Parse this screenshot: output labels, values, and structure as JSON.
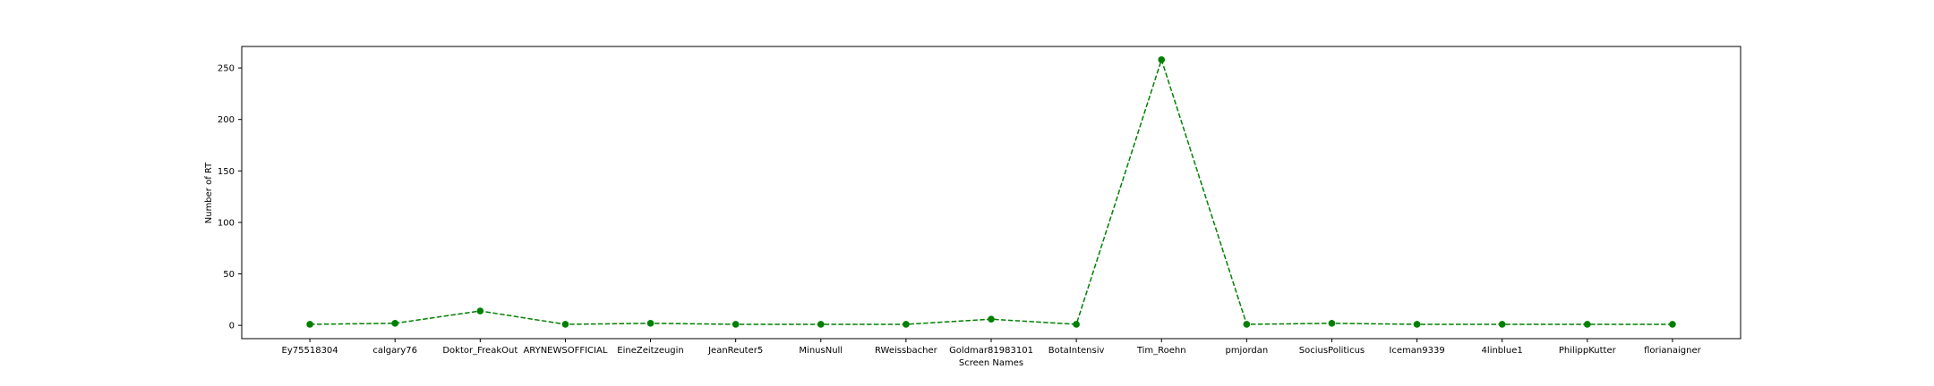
{
  "chart_data": {
    "type": "line",
    "title": "",
    "xlabel": "Screen Names",
    "ylabel": "Number of RT",
    "categories": [
      "Ey75518304",
      "calgary76",
      "Doktor_FreakOut",
      "ARYNEWSOFFICIAL",
      "EineZeitzeugin",
      "JeanReuter5",
      "MinusNull",
      "RWeissbacher",
      "Goldmar81983101",
      "BotaIntensiv",
      "Tim_Roehn",
      "pmjordan",
      "SociusPoliticus",
      "Iceman9339",
      "4linblue1",
      "PhilippKutter",
      "florianaigner"
    ],
    "series": [
      {
        "values": [
          1,
          2,
          14,
          1,
          2,
          1,
          1,
          1,
          6,
          1,
          258,
          1,
          2,
          1,
          1,
          1,
          1
        ],
        "color": "#008000",
        "line_style": "dashed",
        "marker": "circle"
      }
    ],
    "ylim": [
      -12.9,
      270.9
    ],
    "yticks": [
      0,
      50,
      100,
      150,
      200,
      250
    ],
    "grid": false,
    "legend": "none"
  }
}
